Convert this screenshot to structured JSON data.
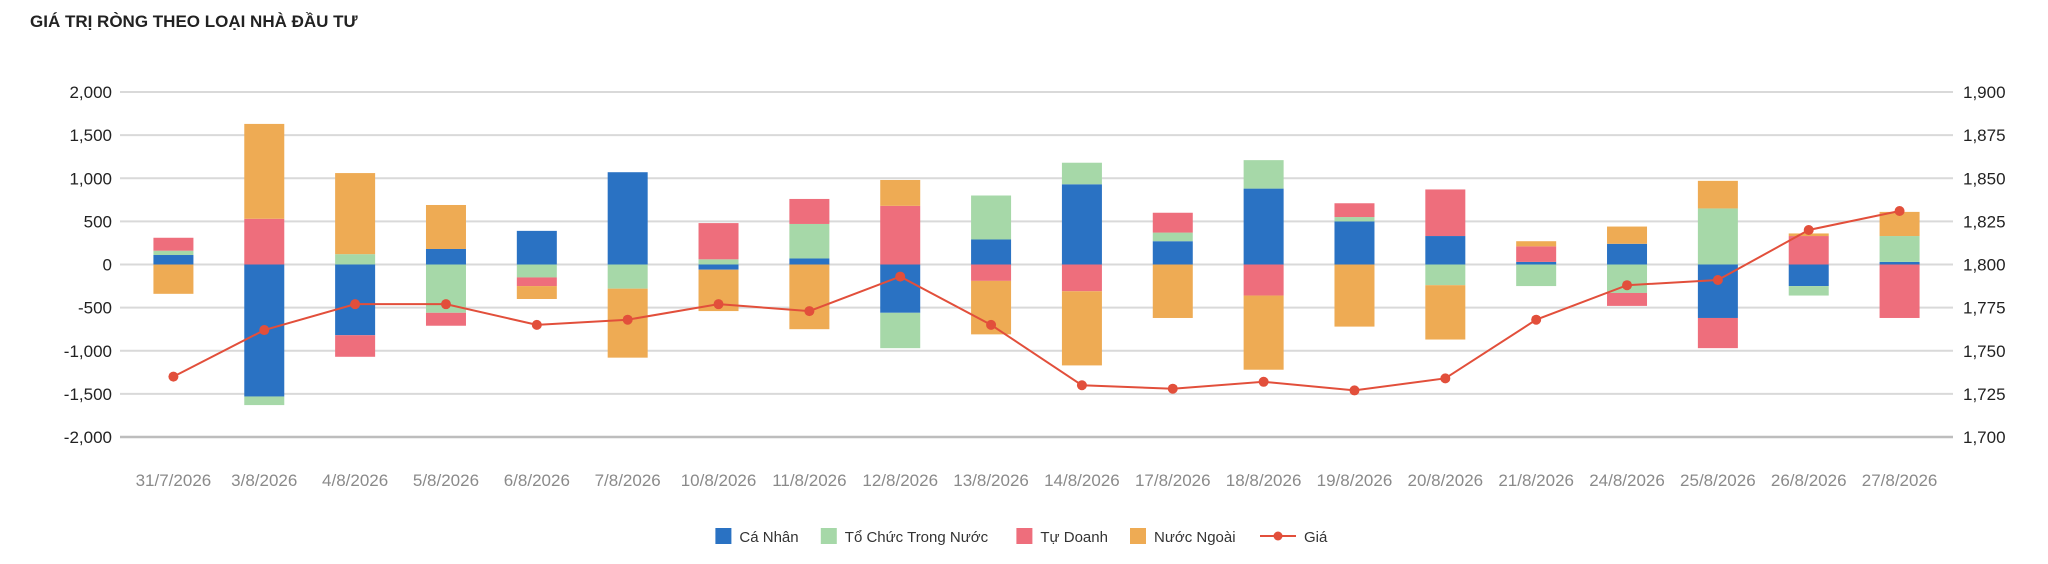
{
  "title": "GIÁ TRỊ RÒNG THEO LOẠI NHÀ ĐẦU TƯ",
  "chart_data": {
    "type": "bar",
    "stacked": true,
    "title": "GIÁ TRỊ RÒNG THEO LOẠI NHÀ ĐẦU TƯ",
    "categories": [
      "31/7/2026",
      "3/8/2026",
      "4/8/2026",
      "5/8/2026",
      "6/8/2026",
      "7/8/2026",
      "10/8/2026",
      "11/8/2026",
      "12/8/2026",
      "13/8/2026",
      "14/8/2026",
      "17/8/2026",
      "18/8/2026",
      "19/8/2026",
      "20/8/2026",
      "21/8/2026",
      "24/8/2026",
      "25/8/2026",
      "26/8/2026",
      "27/8/2026"
    ],
    "yticks_left": [
      "2,000",
      "1,500",
      "1,000",
      "500",
      "0",
      "-500",
      "-1,000",
      "-1,500",
      "-2,000"
    ],
    "yticks_right": [
      "1,900",
      "1,875",
      "1,850",
      "1,825",
      "1,800",
      "1,775",
      "1,750",
      "1,725",
      "1,700"
    ],
    "ylim_left": [
      -2000,
      2000
    ],
    "ylim_right": [
      1700,
      1900
    ],
    "grid": true,
    "legend_position": "bottom",
    "series": [
      {
        "name": "Cá Nhân",
        "color": "#2a72c3",
        "values": [
          110,
          -1530,
          -820,
          180,
          390,
          1070,
          -60,
          70,
          -560,
          290,
          930,
          270,
          880,
          500,
          330,
          30,
          240,
          -620,
          -250,
          30
        ]
      },
      {
        "name": "Tổ Chức Trong Nước",
        "color": "#a6d8a8",
        "values": [
          50,
          -100,
          120,
          -560,
          -150,
          -280,
          60,
          400,
          -410,
          510,
          250,
          100,
          330,
          50,
          -240,
          -250,
          -330,
          650,
          -110,
          300
        ]
      },
      {
        "name": "Tự Doanh",
        "color": "#ee6e7c",
        "values": [
          150,
          530,
          -250,
          -150,
          -100,
          0,
          420,
          290,
          680,
          -190,
          -310,
          230,
          -360,
          160,
          540,
          180,
          -150,
          -350,
          330,
          -620
        ]
      },
      {
        "name": "Nước Ngoài",
        "color": "#eeab54",
        "values": [
          -340,
          1100,
          940,
          510,
          -150,
          -800,
          -480,
          -750,
          300,
          -620,
          -860,
          -620,
          -860,
          -720,
          -630,
          60,
          200,
          320,
          30,
          280
        ]
      }
    ],
    "line_series": {
      "name": "Giá",
      "color": "#e24f3b",
      "axis": "right",
      "values": [
        1735,
        1762,
        1777,
        1777,
        1765,
        1768,
        1777,
        1773,
        1793,
        1765,
        1730,
        1728,
        1732,
        1727,
        1734,
        1768,
        1788,
        1791,
        1820,
        1831
      ]
    }
  }
}
